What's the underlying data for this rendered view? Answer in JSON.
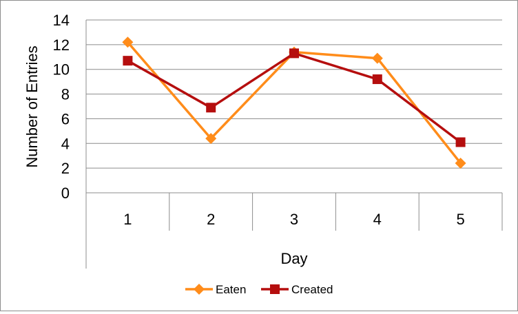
{
  "chart_data": {
    "type": "line",
    "xlabel": "Day",
    "ylabel": "Number of Entries",
    "categories": [
      "1",
      "2",
      "3",
      "4",
      "5"
    ],
    "ylim": [
      0,
      14
    ],
    "yticks": [
      0,
      2,
      4,
      6,
      8,
      10,
      12,
      14
    ],
    "grid": true,
    "legend_position": "bottom",
    "series": [
      {
        "name": "Eaten",
        "values": [
          12.2,
          4.4,
          11.4,
          10.9,
          2.4
        ],
        "color": "#ff8c1a",
        "marker": "diamond"
      },
      {
        "name": "Created",
        "values": [
          10.7,
          6.9,
          11.3,
          9.2,
          4.1
        ],
        "color": "#b50e0e",
        "marker": "square"
      }
    ]
  }
}
